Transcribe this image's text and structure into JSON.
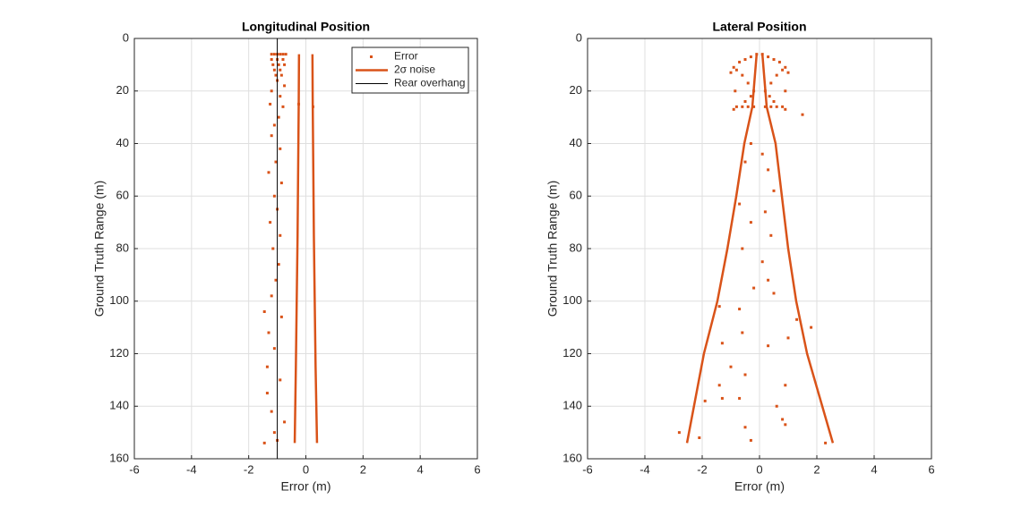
{
  "chart_data": [
    {
      "type": "scatter",
      "title": "Longitudinal Position",
      "x_label": "Error (m)",
      "y_label": "Ground Truth Range (m)",
      "xlim": [
        -6,
        6
      ],
      "ylim": [
        0,
        160
      ],
      "y_reversed": true,
      "grid": true,
      "legend": "northeast",
      "xticks": [
        -6,
        -4,
        -2,
        0,
        2,
        4,
        6
      ],
      "yticks": [
        0,
        20,
        40,
        60,
        80,
        100,
        120,
        140,
        160
      ],
      "series": [
        {
          "name": "Error",
          "mode": "markers",
          "color": "#d95319",
          "x": [
            -1.2,
            -1.1,
            -1.0,
            -0.9,
            -0.8,
            -0.7,
            -1.2,
            -1.0,
            -0.8,
            -1.15,
            -0.95,
            -0.75,
            -1.1,
            -0.9,
            -1.05,
            -0.85,
            -1.0,
            -0.75,
            -1.2,
            -0.9,
            -1.25,
            -0.8,
            -0.95,
            -1.1,
            -1.2,
            -0.9,
            -1.05,
            -1.3,
            -0.85,
            -1.1,
            -1.0,
            -1.25,
            -0.9,
            -1.15,
            -0.95,
            -1.05,
            -1.2,
            -1.45,
            -0.85,
            -1.3,
            -1.1,
            -1.35,
            -0.9,
            -1.35,
            -1.2,
            -0.75,
            -1.1,
            -1.45,
            -1.0,
            -0.25,
            0.25
          ],
          "y": [
            6,
            6,
            6,
            6,
            6,
            6,
            8,
            8,
            8,
            10,
            10,
            10,
            12,
            12,
            14,
            14,
            16,
            18,
            20,
            22,
            25,
            26,
            30,
            33,
            37,
            42,
            47,
            51,
            55,
            60,
            65,
            70,
            75,
            80,
            86,
            92,
            98,
            104,
            106,
            112,
            118,
            125,
            130,
            135,
            142,
            146,
            150,
            154,
            153,
            25,
            26
          ]
        },
        {
          "name": "2σ  noise",
          "mode": "lines",
          "color": "#d95319",
          "width": 2.5,
          "x": [
            -0.24,
            -0.25,
            -0.27,
            -0.29,
            -0.32,
            -0.35,
            -0.39,
            null,
            0.23,
            0.24,
            0.26,
            0.28,
            0.31,
            0.34,
            0.39
          ],
          "y": [
            6,
            25,
            50,
            75,
            100,
            125,
            154,
            null,
            6,
            25,
            50,
            75,
            100,
            125,
            154
          ]
        },
        {
          "name": "Rear overhang",
          "mode": "lines",
          "color": "#000000",
          "width": 1,
          "x": [
            -1,
            -1
          ],
          "y": [
            0,
            160
          ]
        }
      ]
    },
    {
      "type": "scatter",
      "title": "Lateral Position",
      "x_label": "Error (m)",
      "y_label": "Ground Truth Range (m)",
      "xlim": [
        -6,
        6
      ],
      "ylim": [
        0,
        160
      ],
      "y_reversed": true,
      "grid": true,
      "xticks": [
        -6,
        -4,
        -2,
        0,
        2,
        4,
        6
      ],
      "yticks": [
        0,
        20,
        40,
        60,
        80,
        100,
        120,
        140,
        160
      ],
      "series": [
        {
          "name": "Error",
          "mode": "markers",
          "color": "#d95319",
          "x": [
            -0.9,
            -0.7,
            -0.5,
            -0.3,
            -0.1,
            0.1,
            0.3,
            0.5,
            0.7,
            0.9,
            -1.0,
            1.0,
            -0.8,
            0.8,
            -0.6,
            0.6,
            -0.4,
            0.4,
            -0.2,
            0.2,
            -0.8,
            -0.6,
            -0.4,
            -0.2,
            0.2,
            0.4,
            0.6,
            0.8,
            -0.9,
            0.9,
            1.5,
            -0.5,
            0.5,
            -0.3,
            0.35,
            -0.85,
            0.9,
            -0.3,
            0.1,
            -0.5,
            0.3,
            0.5,
            -0.7,
            0.2,
            -0.3,
            0.4,
            -0.6,
            0.1,
            0.3,
            -0.2,
            0.5,
            -0.7,
            1.3,
            1.8,
            -1.4,
            -1.3,
            0.3,
            -0.6,
            1.0,
            -1.0,
            -0.5,
            0.9,
            -1.4,
            -1.9,
            0.6,
            -0.7,
            0.8,
            -0.5,
            -2.1,
            -2.8,
            2.3,
            0.9,
            -0.3,
            -1.3
          ],
          "y": [
            11,
            9,
            8,
            7,
            6,
            6,
            7,
            8,
            9,
            11,
            13,
            13,
            12,
            12,
            14,
            14,
            17,
            17,
            20,
            20,
            26,
            26,
            26,
            26,
            26,
            26,
            26,
            26,
            27,
            27,
            29,
            24,
            24,
            22,
            22,
            20,
            20,
            40,
            44,
            47,
            50,
            58,
            63,
            66,
            70,
            75,
            80,
            85,
            92,
            95,
            97,
            103,
            107,
            110,
            102,
            116,
            117,
            112,
            114,
            125,
            128,
            132,
            132,
            138,
            140,
            137,
            145,
            148,
            152,
            150,
            154,
            147,
            153,
            137
          ]
        },
        {
          "name": "2σ  noise",
          "mode": "lines",
          "color": "#d95319",
          "width": 2.5,
          "x": [
            -0.1,
            -0.25,
            -0.53,
            -0.81,
            -1.12,
            -1.47,
            -1.94,
            -2.53,
            null,
            0.1,
            0.25,
            0.56,
            0.78,
            1.0,
            1.28,
            1.66,
            2.56
          ],
          "y": [
            6,
            26,
            40,
            60,
            80,
            100,
            120,
            154,
            null,
            6,
            26,
            40,
            60,
            80,
            100,
            120,
            154
          ]
        }
      ]
    }
  ]
}
